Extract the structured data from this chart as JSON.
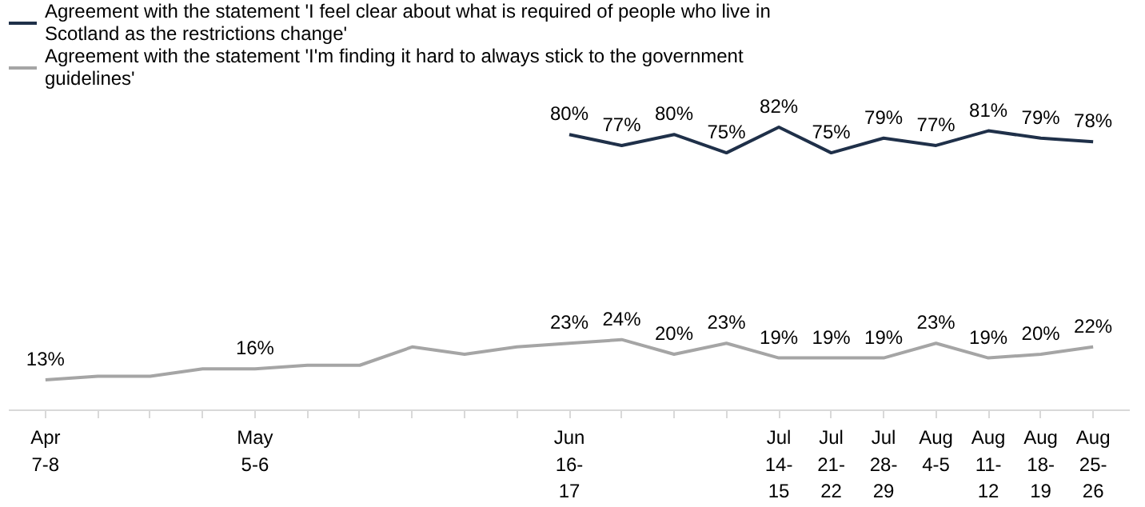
{
  "chart_data": {
    "type": "line",
    "categories": [
      "Apr\n7-8",
      null,
      null,
      null,
      "May\n5-6",
      null,
      null,
      null,
      null,
      null,
      "Jun\n16-\n17",
      null,
      null,
      null,
      "Jul\n14-\n15",
      "Jul\n21-\n22",
      "Jul\n28-\n29",
      "Aug\n4-5",
      "Aug\n11-\n12",
      "Aug\n18-\n19",
      "Aug\n25-\n26"
    ],
    "series": [
      {
        "name": "Agreement with the statement 'I feel clear about what is required of people who live in Scotland as the restrictions change'",
        "color": "#1f3049",
        "values": [
          null,
          null,
          null,
          null,
          null,
          null,
          null,
          null,
          null,
          null,
          80,
          77,
          80,
          75,
          82,
          75,
          79,
          77,
          81,
          79,
          78
        ],
        "value_labels": [
          null,
          null,
          null,
          null,
          null,
          null,
          null,
          null,
          null,
          null,
          "80%",
          "77%",
          "80%",
          "75%",
          "82%",
          "75%",
          "79%",
          "77%",
          "81%",
          "79%",
          "78%"
        ]
      },
      {
        "name": "Agreement with the statement 'I'm finding it hard to always stick to the government guidelines'",
        "color": "#a5a5a5",
        "values": [
          13,
          14,
          14,
          16,
          16,
          17,
          17,
          22,
          20,
          22,
          23,
          24,
          20,
          23,
          19,
          19,
          19,
          23,
          19,
          20,
          22
        ],
        "value_labels": [
          "13%",
          null,
          null,
          null,
          "16%",
          null,
          null,
          null,
          null,
          null,
          "23%",
          "24%",
          "20%",
          "23%",
          "19%",
          "19%",
          "19%",
          "23%",
          "19%",
          "20%",
          "22%"
        ]
      }
    ],
    "legend": "top",
    "line_style": "solid"
  }
}
